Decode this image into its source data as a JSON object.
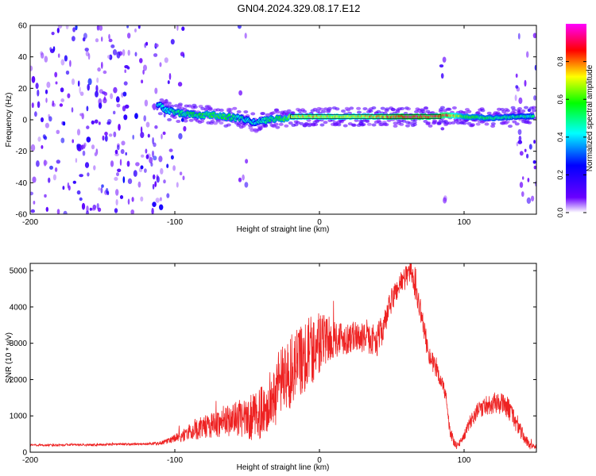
{
  "figure": {
    "title": "GN04.2024.329.08.17.E12"
  },
  "chart_data": [
    {
      "type": "heatmap",
      "xlabel": "Height of straight line (km)",
      "ylabel": "Frequency (Hz)",
      "xlim": [
        -200,
        150
      ],
      "ylim": [
        -60,
        60
      ],
      "xticks": [
        -200,
        -100,
        0,
        100
      ],
      "yticks": [
        -60,
        -40,
        -20,
        0,
        20,
        40,
        60
      ],
      "colorbar": {
        "label": "Normalized spectral amplitude",
        "range": [
          0,
          1
        ],
        "ticks": [
          0.0,
          0.2,
          0.4,
          0.6,
          0.8
        ],
        "tick_labels": [
          "0.0",
          "0.2",
          "0.4",
          "0.6",
          "0.8"
        ],
        "colormap": [
          "#ffffff",
          "#6a00ff",
          "#0000ff",
          "#00ffff",
          "#00ff00",
          "#ffff00",
          "#ff0000",
          "#ff00ff"
        ]
      },
      "ridge": {
        "x": [
          -112,
          -105,
          -95,
          -85,
          -75,
          -65,
          -55,
          -45,
          -35,
          -25,
          -15,
          -5,
          5,
          20,
          40,
          60,
          80,
          88,
          100,
          120,
          135,
          145
        ],
        "y": [
          10,
          6,
          4,
          3,
          3,
          2,
          1,
          -2,
          0,
          1,
          2,
          2,
          2,
          2,
          2,
          2,
          2,
          3,
          2,
          1,
          2,
          2
        ],
        "amplitude": [
          0.45,
          0.5,
          0.55,
          0.55,
          0.6,
          0.6,
          0.5,
          0.45,
          0.55,
          0.6,
          0.75,
          0.8,
          0.75,
          0.75,
          0.8,
          0.95,
          0.9,
          0.9,
          0.6,
          0.55,
          0.5,
          0.5
        ]
      },
      "noise_regions": [
        {
          "x": [
            -200,
            -112
          ],
          "level": 0.2
        },
        {
          "x": [
            -112,
            -92
          ],
          "level": 0.12
        },
        {
          "x": [
            -56,
            -50
          ],
          "level": 0.1
        },
        {
          "x": [
            84,
            87
          ],
          "level": 0.15
        },
        {
          "x": [
            135,
            150
          ],
          "level": 0.15
        }
      ],
      "series_color": "#ff0000"
    },
    {
      "type": "line",
      "xlabel": "Height of straight line (km)",
      "ylabel": "SNR (10 * v/v)",
      "xlim": [
        -200,
        150
      ],
      "ylim": [
        0,
        5200
      ],
      "xticks": [
        -200,
        -100,
        0,
        100
      ],
      "yticks": [
        0,
        1000,
        2000,
        3000,
        4000,
        5000
      ],
      "color": "#ee2222",
      "x": [
        -200,
        -190,
        -180,
        -170,
        -160,
        -150,
        -140,
        -130,
        -120,
        -110,
        -105,
        -100,
        -95,
        -90,
        -85,
        -80,
        -75,
        -70,
        -65,
        -60,
        -55,
        -50,
        -45,
        -40,
        -35,
        -30,
        -25,
        -20,
        -15,
        -10,
        -5,
        0,
        5,
        10,
        15,
        20,
        25,
        30,
        35,
        40,
        45,
        50,
        55,
        60,
        63,
        65,
        70,
        75,
        80,
        85,
        88,
        90,
        93,
        95,
        100,
        105,
        110,
        115,
        120,
        125,
        130,
        135,
        140,
        145,
        150
      ],
      "y": [
        200,
        190,
        200,
        210,
        200,
        210,
        220,
        220,
        230,
        250,
        300,
        380,
        450,
        550,
        620,
        700,
        750,
        800,
        850,
        900,
        950,
        850,
        1000,
        1100,
        1300,
        1700,
        2000,
        2200,
        2500,
        2700,
        2850,
        3000,
        3100,
        3150,
        3150,
        3150,
        3200,
        3150,
        3100,
        3100,
        3500,
        4200,
        4600,
        4850,
        5050,
        4700,
        3900,
        2800,
        2300,
        1900,
        1400,
        650,
        250,
        150,
        450,
        900,
        1150,
        1300,
        1350,
        1350,
        1250,
        900,
        500,
        200,
        150
      ],
      "noise": [
        30,
        30,
        30,
        30,
        30,
        30,
        30,
        30,
        30,
        50,
        80,
        120,
        180,
        220,
        280,
        320,
        360,
        400,
        420,
        450,
        500,
        550,
        650,
        750,
        850,
        950,
        1000,
        1050,
        1050,
        1050,
        1000,
        950,
        650,
        550,
        500,
        450,
        400,
        400,
        400,
        450,
        400,
        350,
        350,
        350,
        300,
        300,
        300,
        300,
        250,
        220,
        200,
        180,
        130,
        100,
        130,
        200,
        250,
        280,
        300,
        300,
        300,
        280,
        200,
        120,
        60
      ]
    }
  ]
}
